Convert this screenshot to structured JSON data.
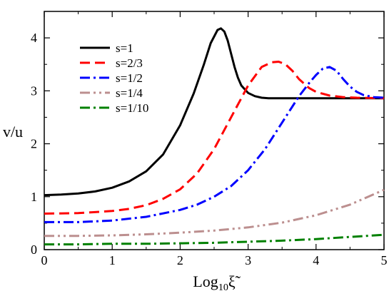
{
  "chart_data": {
    "type": "line",
    "xlabel": "Log",
    "xlabel_sub": "10",
    "xlabel_var": "ξ̃",
    "ylabel": "v/u",
    "xlim": [
      0,
      5
    ],
    "ylim": [
      0,
      4.5
    ],
    "xticks": [
      0,
      1,
      2,
      3,
      4,
      5
    ],
    "xtick_labels": [
      "0",
      "1",
      "2",
      "3",
      "4",
      "5"
    ],
    "yticks": [
      0,
      1,
      2,
      3,
      4
    ],
    "ytick_labels": [
      "0",
      "1",
      "2",
      "3",
      "4"
    ],
    "grid": false,
    "legend_position": "top-left",
    "series": [
      {
        "name": "s=1",
        "color": "#000000",
        "dash": "solid",
        "x": [
          0,
          0.25,
          0.5,
          0.75,
          1.0,
          1.25,
          1.5,
          1.75,
          2.0,
          2.2,
          2.35,
          2.45,
          2.55,
          2.6,
          2.65,
          2.7,
          2.75,
          2.8,
          2.85,
          2.9,
          3.0,
          3.1,
          3.2,
          3.3,
          3.5,
          3.8,
          4.2,
          5.0
        ],
        "y": [
          1.03,
          1.04,
          1.06,
          1.1,
          1.17,
          1.29,
          1.48,
          1.8,
          2.35,
          2.95,
          3.5,
          3.9,
          4.15,
          4.18,
          4.12,
          3.95,
          3.7,
          3.45,
          3.25,
          3.1,
          2.96,
          2.9,
          2.87,
          2.86,
          2.86,
          2.86,
          2.86,
          2.86
        ]
      },
      {
        "name": "s=2/3",
        "color": "#ff0000",
        "dash": "dashed",
        "x": [
          0,
          0.5,
          1.0,
          1.25,
          1.5,
          1.75,
          2.0,
          2.25,
          2.5,
          2.75,
          3.0,
          3.2,
          3.35,
          3.45,
          3.55,
          3.65,
          3.75,
          3.9,
          4.0,
          4.2,
          4.4,
          4.6,
          5.0
        ],
        "y": [
          0.68,
          0.69,
          0.73,
          0.77,
          0.84,
          0.96,
          1.14,
          1.44,
          1.9,
          2.5,
          3.1,
          3.45,
          3.54,
          3.55,
          3.5,
          3.38,
          3.22,
          3.05,
          2.98,
          2.91,
          2.88,
          2.87,
          2.86
        ]
      },
      {
        "name": "s=1/2",
        "color": "#0000ff",
        "dash": "dashdot",
        "x": [
          0,
          0.5,
          1.0,
          1.5,
          2.0,
          2.25,
          2.5,
          2.75,
          3.0,
          3.25,
          3.5,
          3.75,
          3.9,
          4.0,
          4.1,
          4.2,
          4.3,
          4.4,
          4.5,
          4.6,
          4.7,
          4.85,
          5.0
        ],
        "y": [
          0.52,
          0.52,
          0.55,
          0.62,
          0.75,
          0.85,
          1.0,
          1.2,
          1.5,
          1.9,
          2.4,
          2.9,
          3.15,
          3.3,
          3.42,
          3.45,
          3.38,
          3.22,
          3.08,
          2.98,
          2.92,
          2.88,
          2.87
        ]
      },
      {
        "name": "s=1/4",
        "color": "#bc8f8f",
        "dash": "dashdotdot",
        "x": [
          0,
          0.5,
          1.0,
          1.5,
          2.0,
          2.5,
          3.0,
          3.5,
          4.0,
          4.5,
          5.0
        ],
        "y": [
          0.26,
          0.26,
          0.27,
          0.29,
          0.32,
          0.36,
          0.42,
          0.51,
          0.65,
          0.85,
          1.13
        ]
      },
      {
        "name": "s=1/10",
        "color": "#008000",
        "dash": "dashdot",
        "x": [
          0,
          0.5,
          1.0,
          1.5,
          2.0,
          2.5,
          3.0,
          3.5,
          4.0,
          4.5,
          5.0
        ],
        "y": [
          0.1,
          0.1,
          0.11,
          0.11,
          0.12,
          0.13,
          0.15,
          0.17,
          0.2,
          0.24,
          0.28
        ]
      }
    ]
  }
}
